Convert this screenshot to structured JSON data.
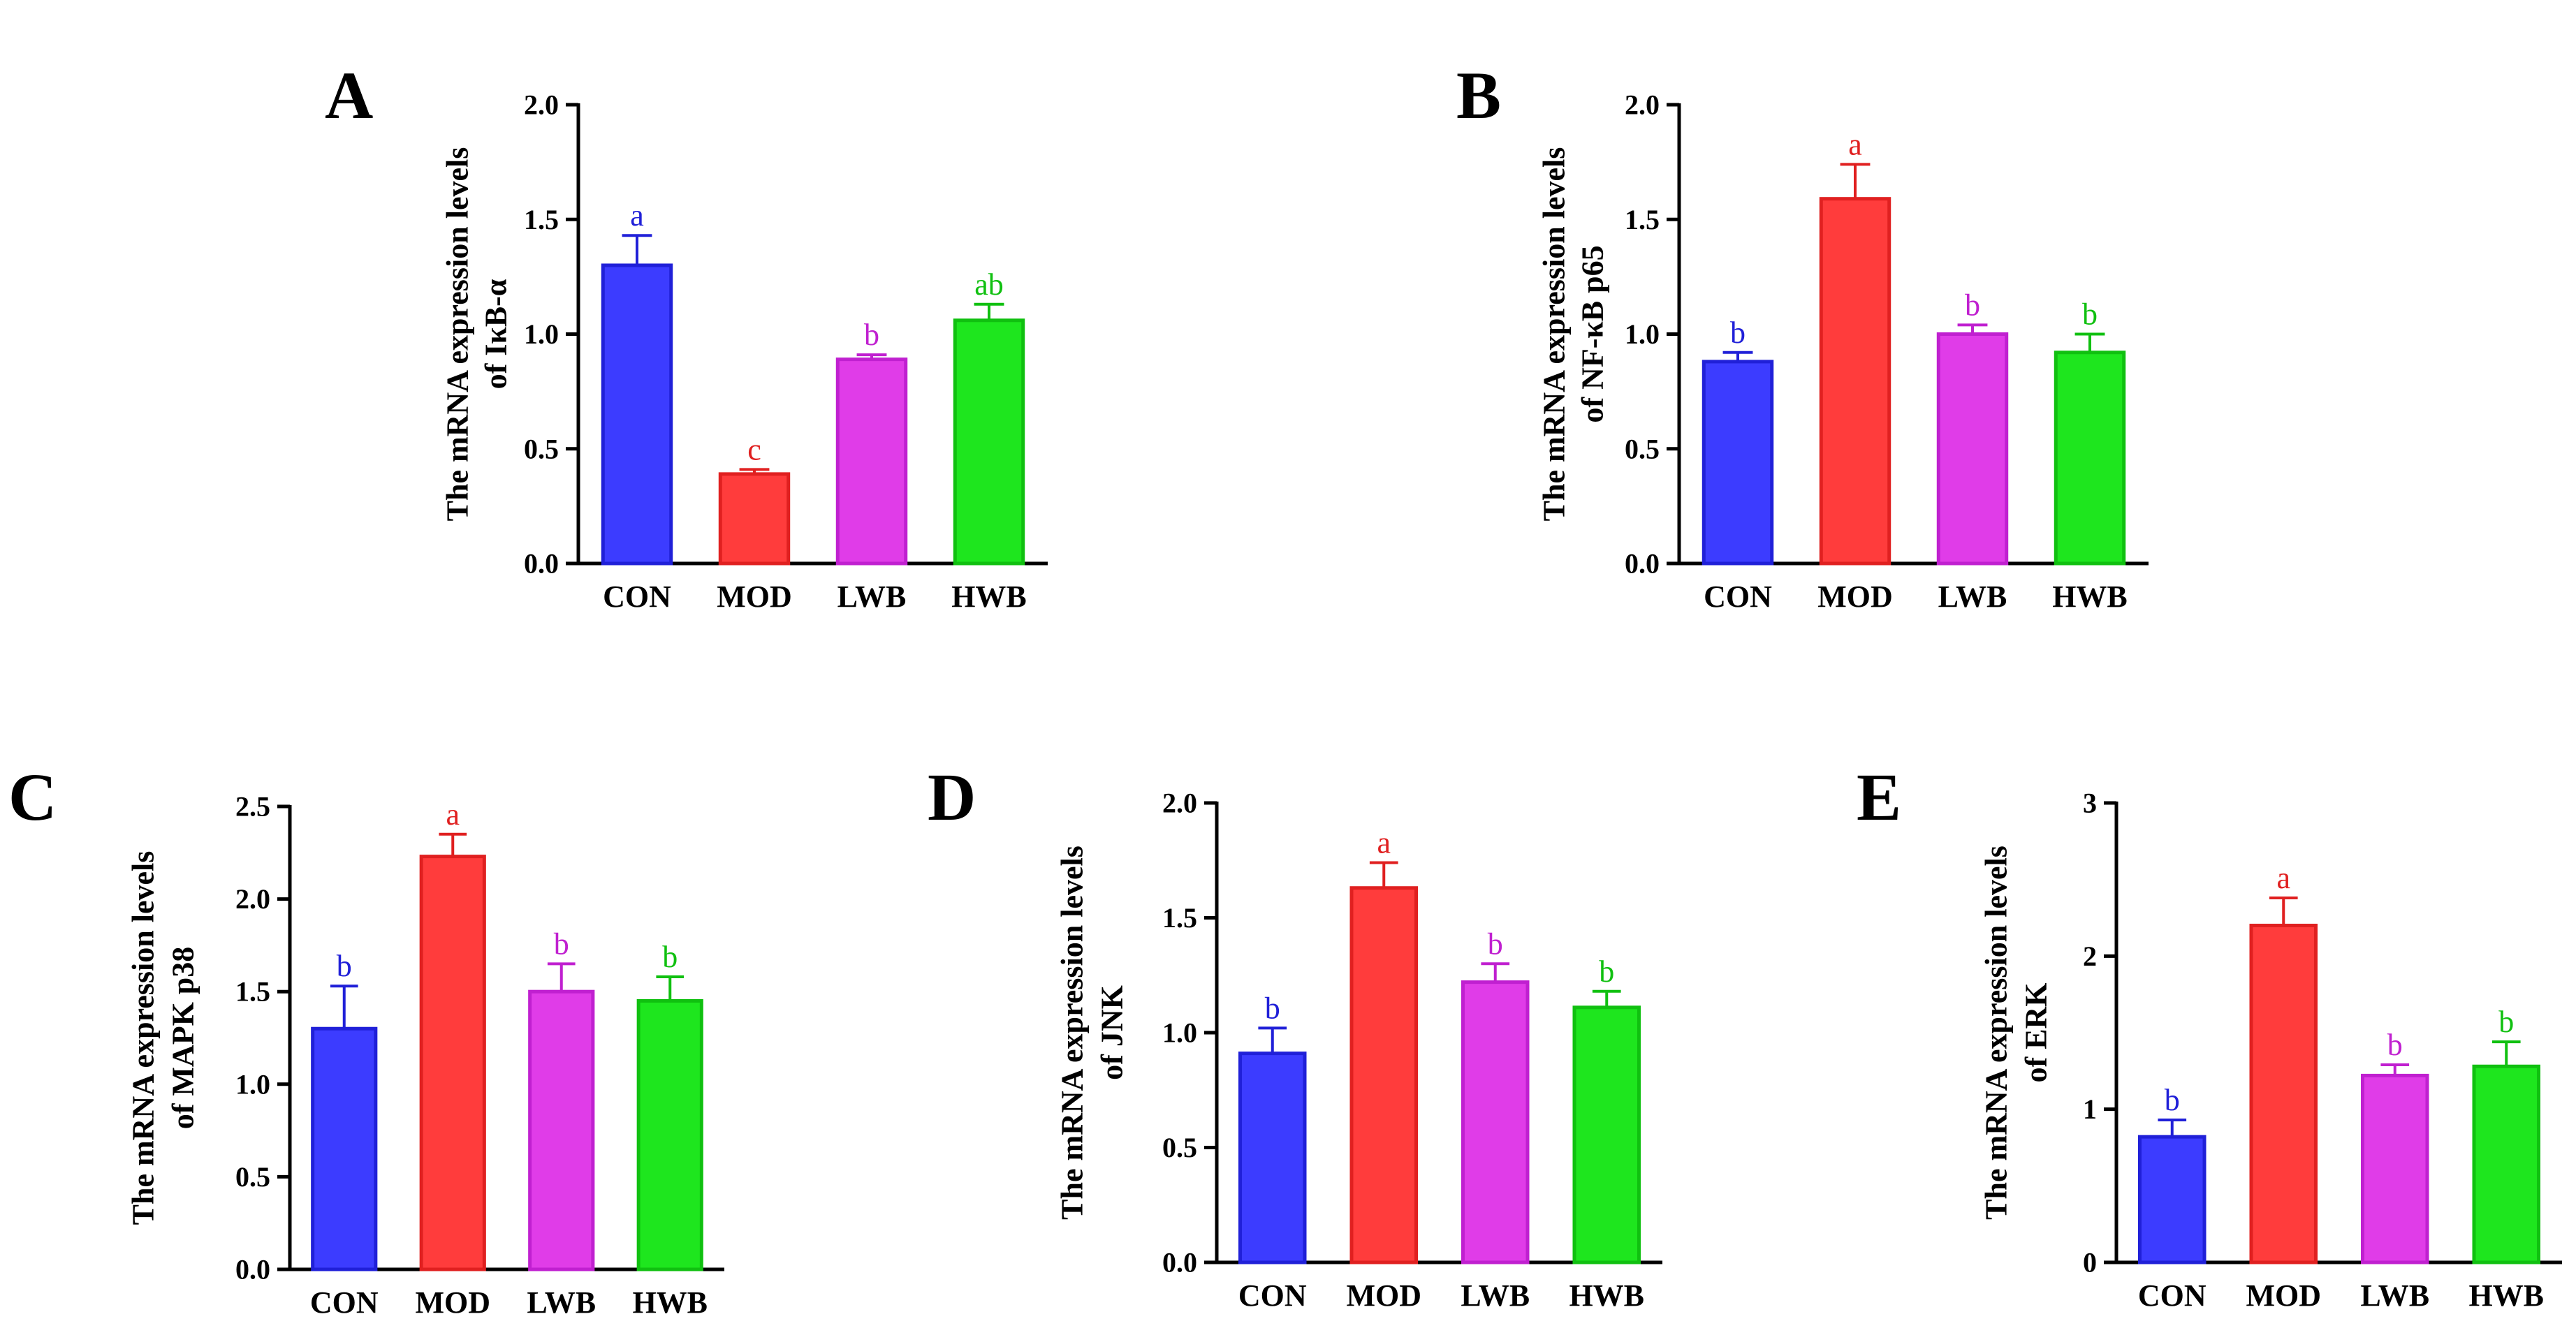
{
  "colors": {
    "CON": {
      "fill": "#3c3cff",
      "edge": "#2020d8"
    },
    "MOD": {
      "fill": "#ff3c3c",
      "edge": "#e02020"
    },
    "LWB": {
      "fill": "#e03ce8",
      "edge": "#c020d0"
    },
    "HWB": {
      "fill": "#1ee61e",
      "edge": "#10c010"
    }
  },
  "chart_data": [
    {
      "panel": "A",
      "type": "bar",
      "ylabel_line1": "The mRNA expression levels",
      "ylabel_line2": "of IκB-α",
      "categories": [
        "CON",
        "MOD",
        "LWB",
        "HWB"
      ],
      "values": [
        1.3,
        0.39,
        0.89,
        1.06
      ],
      "errors": [
        0.13,
        0.02,
        0.02,
        0.07
      ],
      "significance": [
        "a",
        "c",
        "b",
        "ab"
      ],
      "ylim": [
        0,
        2.0
      ],
      "yticks": [
        0.0,
        0.5,
        1.0,
        1.5,
        2.0
      ],
      "ytick_labels": [
        "0.0",
        "0.5",
        "1.0",
        "1.5",
        "2.0"
      ]
    },
    {
      "panel": "B",
      "type": "bar",
      "ylabel_line1": "The mRNA expression levels",
      "ylabel_line2": "of NF-κB p65",
      "categories": [
        "CON",
        "MOD",
        "LWB",
        "HWB"
      ],
      "values": [
        0.88,
        1.59,
        1.0,
        0.92
      ],
      "errors": [
        0.04,
        0.15,
        0.04,
        0.08
      ],
      "significance": [
        "b",
        "a",
        "b",
        "b"
      ],
      "ylim": [
        0,
        2.0
      ],
      "yticks": [
        0.0,
        0.5,
        1.0,
        1.5,
        2.0
      ],
      "ytick_labels": [
        "0.0",
        "0.5",
        "1.0",
        "1.5",
        "2.0"
      ]
    },
    {
      "panel": "C",
      "type": "bar",
      "ylabel_line1": "The mRNA expression levels",
      "ylabel_line2": "of MAPK p38",
      "categories": [
        "CON",
        "MOD",
        "LWB",
        "HWB"
      ],
      "values": [
        1.3,
        2.23,
        1.5,
        1.45
      ],
      "errors": [
        0.23,
        0.12,
        0.15,
        0.13
      ],
      "significance": [
        "b",
        "a",
        "b",
        "b"
      ],
      "ylim": [
        0,
        2.5
      ],
      "yticks": [
        0.0,
        0.5,
        1.0,
        1.5,
        2.0,
        2.5
      ],
      "ytick_labels": [
        "0.0",
        "0.5",
        "1.0",
        "1.5",
        "2.0",
        "2.5"
      ]
    },
    {
      "panel": "D",
      "type": "bar",
      "ylabel_line1": "The mRNA expression levels",
      "ylabel_line2": "of JNK",
      "categories": [
        "CON",
        "MOD",
        "LWB",
        "HWB"
      ],
      "values": [
        0.91,
        1.63,
        1.22,
        1.11
      ],
      "errors": [
        0.11,
        0.11,
        0.08,
        0.07
      ],
      "significance": [
        "b",
        "a",
        "b",
        "b"
      ],
      "ylim": [
        0,
        2.0
      ],
      "yticks": [
        0.0,
        0.5,
        1.0,
        1.5,
        2.0
      ],
      "ytick_labels": [
        "0.0",
        "0.5",
        "1.0",
        "1.5",
        "2.0"
      ]
    },
    {
      "panel": "E",
      "type": "bar",
      "ylabel_line1": "The mRNA expression levels",
      "ylabel_line2": "of ERK",
      "categories": [
        "CON",
        "MOD",
        "LWB",
        "HWB"
      ],
      "values": [
        0.82,
        2.2,
        1.22,
        1.28
      ],
      "errors": [
        0.11,
        0.18,
        0.07,
        0.16
      ],
      "significance": [
        "b",
        "a",
        "b",
        "b"
      ],
      "ylim": [
        0,
        3
      ],
      "yticks": [
        0,
        1,
        2,
        3
      ],
      "ytick_labels": [
        "0",
        "1",
        "2",
        "3"
      ]
    }
  ]
}
